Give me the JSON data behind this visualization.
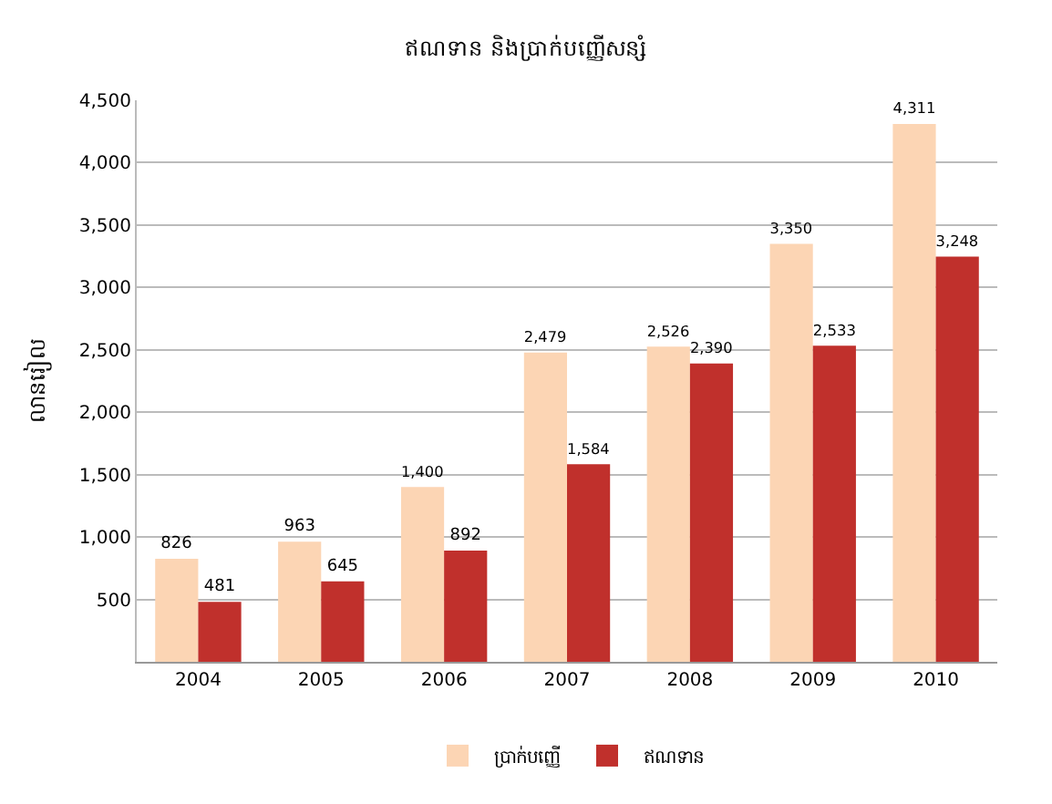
{
  "chart_data": {
    "type": "bar",
    "title": "ឥណទាន និងប្រាក់បញ្ញើសន្សំ",
    "ylabel": "លានរៀល",
    "categories": [
      "2004",
      "2005",
      "2006",
      "2007",
      "2008",
      "2009",
      "2010"
    ],
    "series": [
      {
        "name": "ប្រាក់បញ្ញើ",
        "color": "#fcd5b4",
        "values": [
          826,
          963,
          1400,
          2479,
          2526,
          3350,
          4311
        ]
      },
      {
        "name": "ឥណទាន",
        "color": "#c0302c",
        "values": [
          481,
          645,
          892,
          1584,
          2390,
          2533,
          3248
        ]
      }
    ],
    "ylim": [
      0,
      4500
    ],
    "yticks": [
      {
        "value": 0,
        "label": null
      },
      500,
      {
        "value": 1000,
        "label": "1,000"
      },
      {
        "value": 1500,
        "label": "1,500"
      },
      {
        "value": 2000,
        "label": "2,000"
      },
      {
        "value": 2500,
        "label": "2,500"
      },
      {
        "value": 3000,
        "label": "3,000"
      },
      {
        "value": 3500,
        "label": "3,500"
      },
      {
        "value": 4000,
        "label": "4,000"
      },
      {
        "value": 4500,
        "label": "4,500"
      }
    ],
    "value_labels": [
      [
        "826",
        "963",
        "1,400",
        "2,479",
        "2,526",
        "3,350",
        "4,311"
      ],
      [
        "481",
        "645",
        "892",
        "1,584",
        "2,390",
        "2,533",
        "3,248"
      ]
    ],
    "grid": "y",
    "legend": "bottom"
  }
}
